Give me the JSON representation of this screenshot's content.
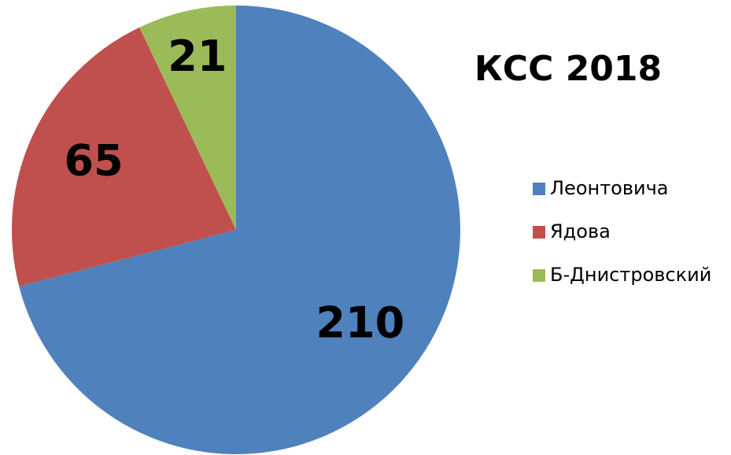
{
  "chart_data": {
    "type": "pie",
    "title": "КСС 2018",
    "categories": [
      "Леонтовича",
      "Ядова",
      "Б-Днистровский"
    ],
    "values": [
      210,
      65,
      21
    ],
    "colors": [
      "#4f81bd",
      "#c0504d",
      "#9bbb59"
    ],
    "legend": "right"
  }
}
